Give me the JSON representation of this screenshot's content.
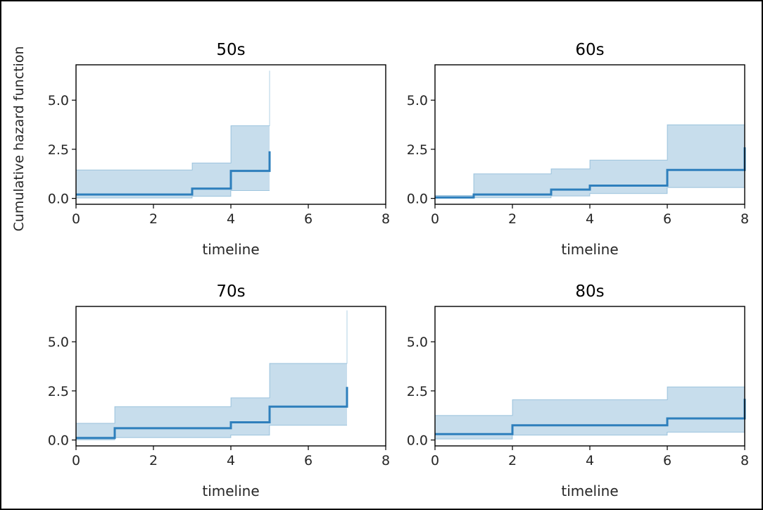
{
  "figure": {
    "ylabel": "Cumulative hazard function"
  },
  "chart_data": [
    {
      "type": "line",
      "title": "50s",
      "xlabel": "timeline",
      "ylabel": "Cumulative hazard function",
      "xlim": [
        0,
        8
      ],
      "ylim": [
        -0.3,
        6.8
      ],
      "xticks": [
        0,
        2,
        4,
        6,
        8
      ],
      "yticks": [
        0.0,
        2.5,
        5.0
      ],
      "xtick_labels": [
        "0",
        "2",
        "4",
        "6",
        "8"
      ],
      "ytick_labels": [
        "0.0",
        "2.5",
        "5.0"
      ],
      "grid": false,
      "x": [
        0,
        3,
        4,
        5
      ],
      "hazard": [
        0.2,
        0.5,
        1.4,
        2.4
      ],
      "ci_lower": [
        0.02,
        0.1,
        0.4,
        0.4
      ],
      "ci_upper": [
        1.45,
        1.8,
        3.7,
        6.5
      ]
    },
    {
      "type": "line",
      "title": "60s",
      "xlabel": "timeline",
      "ylabel": "",
      "xlim": [
        0,
        8
      ],
      "ylim": [
        -0.3,
        6.8
      ],
      "xticks": [
        0,
        2,
        4,
        6,
        8
      ],
      "yticks": [
        0.0,
        2.5,
        5.0
      ],
      "xtick_labels": [
        "0",
        "2",
        "4",
        "6",
        "8"
      ],
      "ytick_labels": [
        "0.0",
        "2.5",
        "5.0"
      ],
      "grid": false,
      "x": [
        0,
        1,
        3,
        4,
        6,
        8
      ],
      "hazard": [
        0.05,
        0.2,
        0.45,
        0.65,
        1.45,
        2.6
      ],
      "ci_lower": [
        0.0,
        0.03,
        0.12,
        0.25,
        0.55,
        0.55
      ],
      "ci_upper": [
        0.15,
        1.25,
        1.5,
        1.95,
        3.75,
        3.75
      ]
    },
    {
      "type": "line",
      "title": "70s",
      "xlabel": "timeline",
      "ylabel": "",
      "xlim": [
        0,
        8
      ],
      "ylim": [
        -0.3,
        6.8
      ],
      "xticks": [
        0,
        2,
        4,
        6,
        8
      ],
      "yticks": [
        0.0,
        2.5,
        5.0
      ],
      "xtick_labels": [
        "0",
        "2",
        "4",
        "6",
        "8"
      ],
      "ytick_labels": [
        "0.0",
        "2.5",
        "5.0"
      ],
      "grid": false,
      "x": [
        0,
        1,
        4,
        5,
        7
      ],
      "hazard": [
        0.1,
        0.6,
        0.9,
        1.7,
        2.7
      ],
      "ci_lower": [
        0.01,
        0.12,
        0.25,
        0.75,
        0.75
      ],
      "ci_upper": [
        0.85,
        1.7,
        2.15,
        3.9,
        6.6
      ]
    },
    {
      "type": "line",
      "title": "80s",
      "xlabel": "timeline",
      "ylabel": "",
      "xlim": [
        0,
        8
      ],
      "ylim": [
        -0.3,
        6.8
      ],
      "xticks": [
        0,
        2,
        4,
        6,
        8
      ],
      "yticks": [
        0.0,
        2.5,
        5.0
      ],
      "xtick_labels": [
        "0",
        "2",
        "4",
        "6",
        "8"
      ],
      "ytick_labels": [
        "0.0",
        "2.5",
        "5.0"
      ],
      "grid": false,
      "x": [
        0,
        2,
        6,
        8
      ],
      "hazard": [
        0.3,
        0.75,
        1.1,
        2.1
      ],
      "ci_lower": [
        0.05,
        0.25,
        0.4,
        0.4
      ],
      "ci_upper": [
        1.25,
        2.05,
        2.7,
        2.7
      ]
    }
  ]
}
